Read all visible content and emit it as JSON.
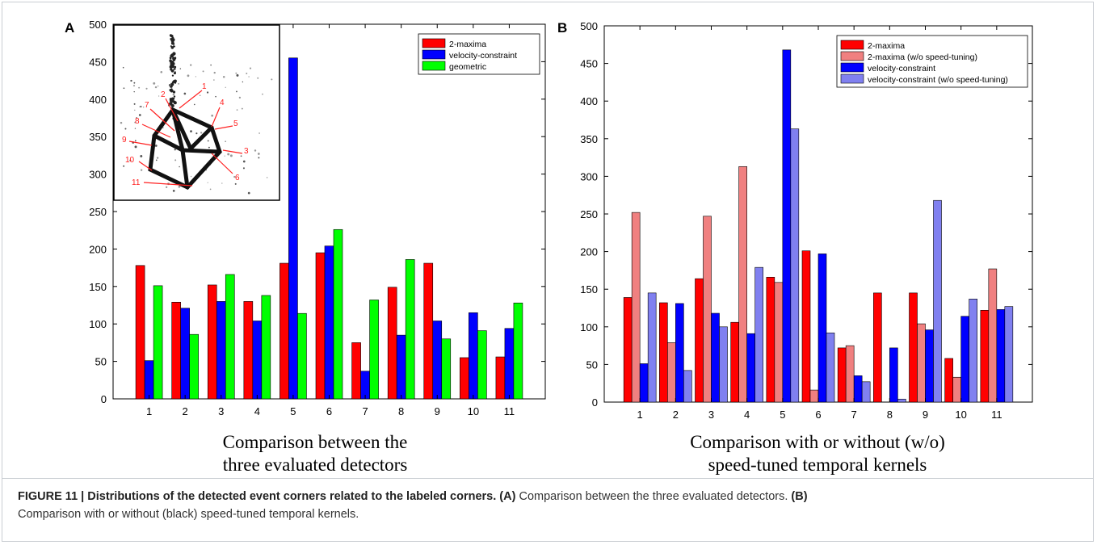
{
  "panels": [
    {
      "panel_label": "A",
      "bottom_text_line1": "Comparison between the",
      "bottom_text_line2": "three evaluated detectors",
      "inset_labels": [
        "1",
        "2",
        "3",
        "4",
        "5",
        "6",
        "7",
        "8",
        "9",
        "10",
        "11"
      ],
      "chart": {
        "type": "bar",
        "categories": [
          "1",
          "2",
          "3",
          "4",
          "5",
          "6",
          "7",
          "8",
          "9",
          "10",
          "11"
        ],
        "ylim": [
          0,
          500
        ],
        "yticks": [
          0,
          50,
          100,
          150,
          200,
          250,
          300,
          350,
          400,
          450,
          500
        ],
        "grid": false,
        "legend_position": "top-right",
        "series": [
          {
            "name": "2-maxima",
            "color": "#ff0000",
            "values": [
              178,
              129,
              152,
              130,
              181,
              195,
              75,
              149,
              181,
              55,
              56
            ]
          },
          {
            "name": "velocity-constraint",
            "color": "#0000ff",
            "values": [
              51,
              121,
              130,
              104,
              455,
              204,
              37,
              85,
              104,
              115,
              94
            ]
          },
          {
            "name": "geometric",
            "color": "#00ff00",
            "values": [
              151,
              86,
              166,
              138,
              114,
              226,
              132,
              186,
              80,
              91,
              128
            ]
          }
        ]
      }
    },
    {
      "panel_label": "B",
      "bottom_text_line1": "Comparison with or without (w/o)",
      "bottom_text_line2": "speed-tuned temporal kernels",
      "chart": {
        "type": "bar",
        "categories": [
          "1",
          "2",
          "3",
          "4",
          "5",
          "6",
          "7",
          "8",
          "9",
          "10",
          "11"
        ],
        "ylim": [
          0,
          500
        ],
        "yticks": [
          0,
          50,
          100,
          150,
          200,
          250,
          300,
          350,
          400,
          450,
          500
        ],
        "grid": false,
        "legend_position": "top-right",
        "series": [
          {
            "name": "2-maxima",
            "color": "#ff0000",
            "values": [
              139,
              132,
              164,
              106,
              166,
              201,
              72,
              145,
              145,
              58,
              122
            ]
          },
          {
            "name": "2-maxima (w/o speed-tuning)",
            "color": "#f08080",
            "values": [
              252,
              79,
              247,
              313,
              159,
              16,
              75,
              0,
              104,
              33,
              177
            ]
          },
          {
            "name": "velocity-constraint",
            "color": "#0000ff",
            "values": [
              51,
              131,
              118,
              91,
              468,
              197,
              35,
              72,
              96,
              114,
              123
            ]
          },
          {
            "name": "velocity-constraint (w/o speed-tuning)",
            "color": "#8080f0",
            "values": [
              145,
              42,
              100,
              179,
              363,
              92,
              27,
              4,
              268,
              137,
              127
            ]
          }
        ]
      }
    }
  ],
  "caption": {
    "label": "FIGURE 11 | Distributions of the detected event corners related to the labeled corners.",
    "a_label": "(A)",
    "a_text": "Comparison between the three evaluated detectors.",
    "b_label": "(B)",
    "b_text": "Comparison with or without (black) speed-tuned temporal kernels."
  }
}
